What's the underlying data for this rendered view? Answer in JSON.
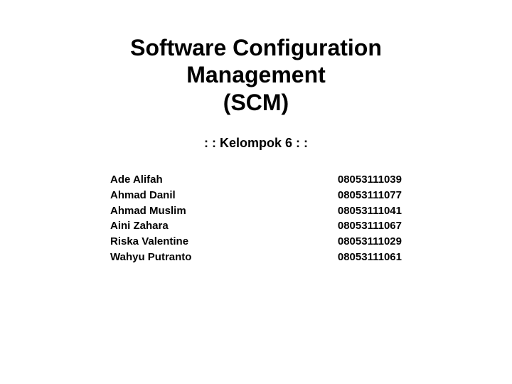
{
  "title": {
    "line1": "Software Configuration",
    "line2": "Management",
    "line3": "(SCM)",
    "fontsize": 32,
    "color": "#000000"
  },
  "subtitle": {
    "text": ": : Kelompok 6 : :",
    "fontsize": 18,
    "color": "#000000"
  },
  "members": [
    {
      "name": "Ade Alifah",
      "id": "08053111039"
    },
    {
      "name": "Ahmad Danil",
      "id": "08053111077"
    },
    {
      "name": "Ahmad Muslim",
      "id": "08053111041"
    },
    {
      "name": "Aini Zahara",
      "id": "08053111067"
    },
    {
      "name": "Riska Valentine",
      "id": "08053111029"
    },
    {
      "name": "Wahyu Putranto",
      "id": "08053111061"
    }
  ],
  "colors": {
    "background": "#ffffff",
    "text": "#000000"
  }
}
